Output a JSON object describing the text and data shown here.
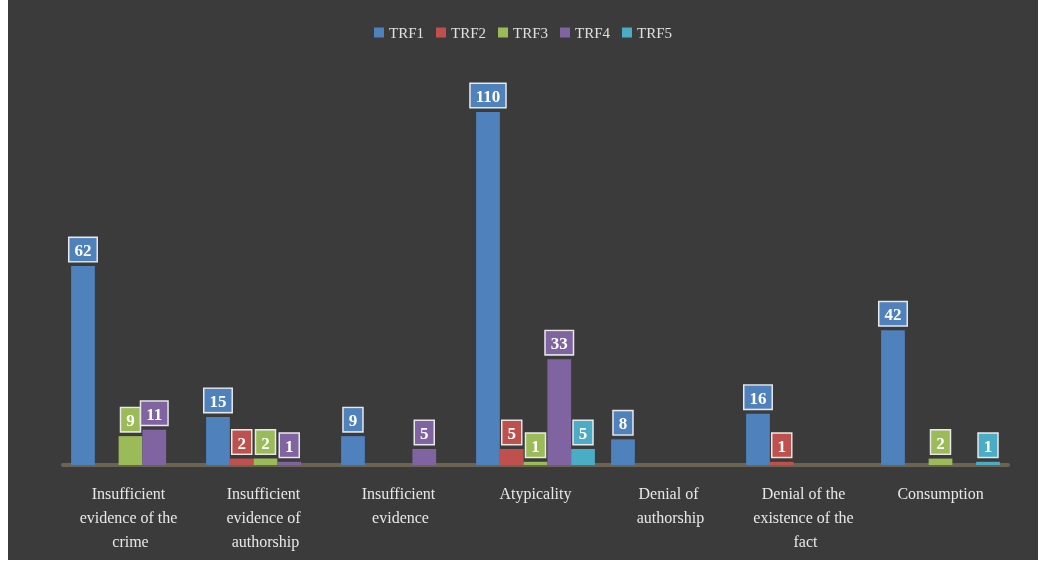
{
  "chart_data": {
    "type": "bar",
    "categories": [
      "Insufficient evidence of the crime",
      "Insufficient evidence of authorship",
      "Insufficient evidence",
      "Atypicality",
      "Denial of authorship",
      "Denial of the existence of the fact",
      "Consumption"
    ],
    "series": [
      {
        "name": "TRF1",
        "color": "#4f81bd",
        "values": [
          62,
          15,
          9,
          110,
          8,
          16,
          42
        ]
      },
      {
        "name": "TRF2",
        "color": "#c0504d",
        "values": [
          null,
          2,
          null,
          5,
          null,
          1,
          null
        ]
      },
      {
        "name": "TRF3",
        "color": "#9bbb59",
        "values": [
          9,
          2,
          null,
          1,
          null,
          null,
          2
        ]
      },
      {
        "name": "TRF4",
        "color": "#8064a2",
        "values": [
          11,
          1,
          5,
          33,
          null,
          null,
          null
        ]
      },
      {
        "name": "TRF5",
        "color": "#4bacc6",
        "values": [
          null,
          null,
          null,
          5,
          null,
          null,
          1
        ]
      }
    ],
    "data_labels": true,
    "legend": "top"
  }
}
